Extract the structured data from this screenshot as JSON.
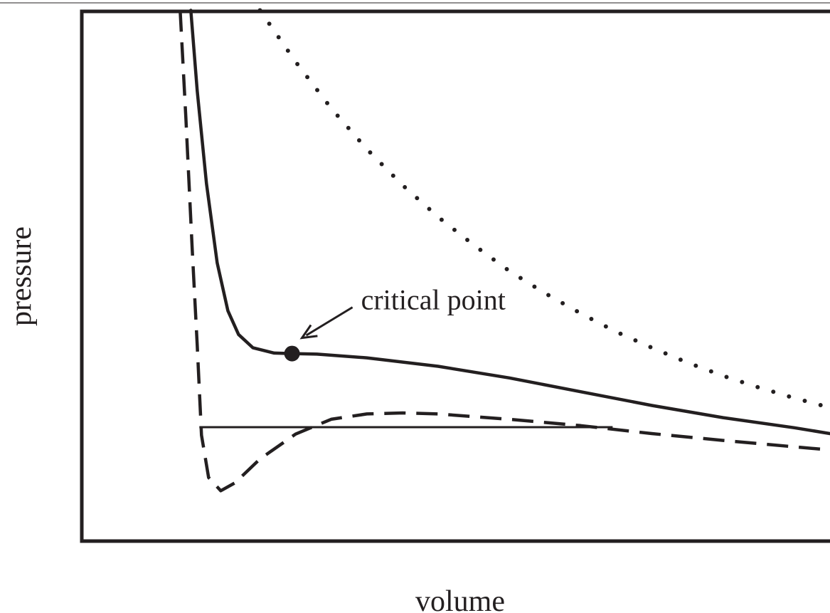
{
  "chart_data": {
    "type": "line",
    "title": "",
    "xlabel": "volume",
    "ylabel": "pressure",
    "xlim": [
      0,
      10.5
    ],
    "ylim": [
      0,
      10
    ],
    "grid": false,
    "legend": "none",
    "ticks": "none",
    "color": "#231f20",
    "series": [
      {
        "style": "dotted",
        "points": [
          [
            2.5,
            10.02
          ],
          [
            3.0,
            9.05
          ],
          [
            3.5,
            8.17
          ],
          [
            4.0,
            7.4
          ],
          [
            4.5,
            6.72
          ],
          [
            5.0,
            6.12
          ],
          [
            5.5,
            5.59
          ],
          [
            6.0,
            5.1
          ],
          [
            6.5,
            4.68
          ],
          [
            7.0,
            4.3
          ],
          [
            7.5,
            3.95
          ],
          [
            8.0,
            3.65
          ],
          [
            8.5,
            3.37
          ],
          [
            9.0,
            3.12
          ],
          [
            9.5,
            2.9
          ],
          [
            10.0,
            2.7
          ],
          [
            10.5,
            2.52
          ]
        ]
      },
      {
        "style": "solid",
        "points": [
          [
            1.53,
            10.02
          ],
          [
            1.62,
            8.5
          ],
          [
            1.75,
            6.75
          ],
          [
            1.9,
            5.25
          ],
          [
            2.05,
            4.35
          ],
          [
            2.2,
            3.9
          ],
          [
            2.4,
            3.65
          ],
          [
            2.7,
            3.55
          ],
          [
            2.95,
            3.54
          ],
          [
            3.3,
            3.53
          ],
          [
            4.0,
            3.46
          ],
          [
            5.0,
            3.3
          ],
          [
            6.0,
            3.08
          ],
          [
            7.0,
            2.82
          ],
          [
            8.0,
            2.56
          ],
          [
            9.0,
            2.33
          ],
          [
            10.0,
            2.14
          ],
          [
            10.5,
            2.03
          ]
        ]
      },
      {
        "style": "dashed",
        "points": [
          [
            1.38,
            10.02
          ],
          [
            1.46,
            8.0
          ],
          [
            1.55,
            5.5
          ],
          [
            1.62,
            3.7
          ],
          [
            1.68,
            2.0
          ],
          [
            1.78,
            1.2
          ],
          [
            1.95,
            0.95
          ],
          [
            2.15,
            1.1
          ],
          [
            2.5,
            1.55
          ],
          [
            3.0,
            2.02
          ],
          [
            3.5,
            2.3
          ],
          [
            4.0,
            2.4
          ],
          [
            4.5,
            2.42
          ],
          [
            5.0,
            2.4
          ],
          [
            6.0,
            2.3
          ],
          [
            7.0,
            2.18
          ],
          [
            8.0,
            2.03
          ],
          [
            9.0,
            1.9
          ],
          [
            10.0,
            1.78
          ],
          [
            10.5,
            1.72
          ]
        ]
      },
      {
        "style": "thin",
        "points": [
          [
            1.65,
            2.15
          ],
          [
            7.45,
            2.15
          ]
        ]
      }
    ],
    "marker": {
      "x": 2.95,
      "y": 3.54,
      "label": "critical point"
    }
  }
}
